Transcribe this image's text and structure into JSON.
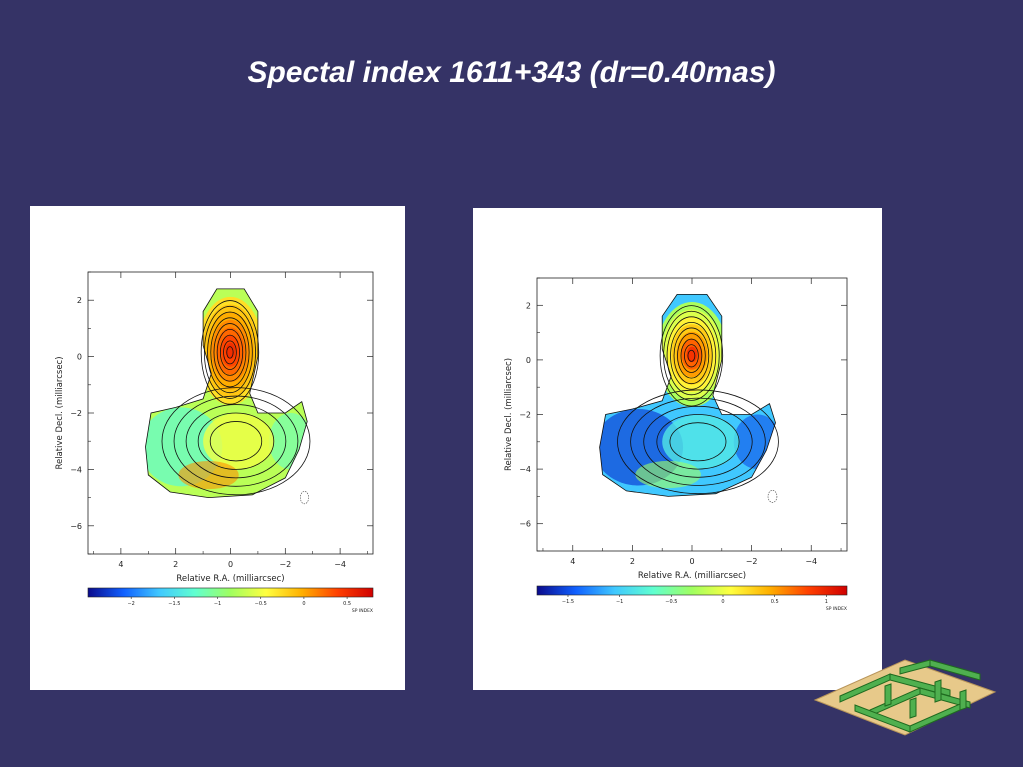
{
  "title": "Spectal index 1611+343 (dr=0.40mas)",
  "chart_data": [
    {
      "type": "heatmap",
      "title": "",
      "xlabel": "Relative R.A. (milliarcsec)",
      "ylabel": "Relative Decl. (milliarcsec)",
      "xlim": [
        5.2,
        -5.2
      ],
      "ylim": [
        -7.0,
        3.0
      ],
      "x_ticks": [
        4,
        2,
        0,
        -2,
        -4
      ],
      "y_ticks": [
        2,
        0,
        -2,
        -4,
        -6
      ],
      "x_tick_labels": [
        "4",
        "2",
        "0",
        "−2",
        "−4"
      ],
      "y_tick_labels": [
        "2",
        "0",
        "−2",
        "−4",
        "−6"
      ],
      "colorbar": {
        "range": [
          -2.5,
          0.8
        ],
        "ticks": [
          -2,
          -1.5,
          -1,
          -0.5,
          0,
          0.5
        ],
        "tick_labels": [
          "−2",
          "−1.5",
          "−1",
          "−0.5",
          "0",
          "0.5"
        ],
        "label": "SP INDEX"
      },
      "core": {
        "x": 0.0,
        "y": 0.0,
        "spectral_index": 0.5
      },
      "jet": {
        "x": -0.3,
        "y": -3.0,
        "spectral_index": -0.9
      }
    },
    {
      "type": "heatmap",
      "title": "",
      "xlabel": "Relative R.A. (milliarcsec)",
      "ylabel": "Relative Decl. (milliarcsec)",
      "xlim": [
        5.2,
        -5.2
      ],
      "ylim": [
        -7.0,
        3.0
      ],
      "x_ticks": [
        4,
        2,
        0,
        -2,
        -4
      ],
      "y_ticks": [
        2,
        0,
        -2,
        -4,
        -6
      ],
      "x_tick_labels": [
        "4",
        "2",
        "0",
        "−2",
        "−4"
      ],
      "y_tick_labels": [
        "2",
        "0",
        "−2",
        "−4",
        "−6"
      ],
      "colorbar": {
        "range": [
          -1.8,
          1.2
        ],
        "ticks": [
          -1.5,
          -1,
          -0.5,
          0,
          0.5,
          1
        ],
        "tick_labels": [
          "−1.5",
          "−1",
          "−0.5",
          "0",
          "0.5",
          "1"
        ],
        "label": "SP INDEX"
      },
      "core": {
        "x": 0.0,
        "y": 0.0,
        "spectral_index": 0.9
      },
      "jet": {
        "x": -0.3,
        "y": -3.0,
        "spectral_index": -1.2
      }
    }
  ],
  "colors": {
    "background": "#353366",
    "title": "#ffffff",
    "panel": "#ffffff",
    "colormap": [
      "#0a0a8c",
      "#1060ff",
      "#40c8ff",
      "#60ffd0",
      "#a0ff60",
      "#ffff40",
      "#ffb000",
      "#ff4000",
      "#d00000"
    ]
  },
  "decoration": {
    "icon": "green-maze-icon"
  }
}
